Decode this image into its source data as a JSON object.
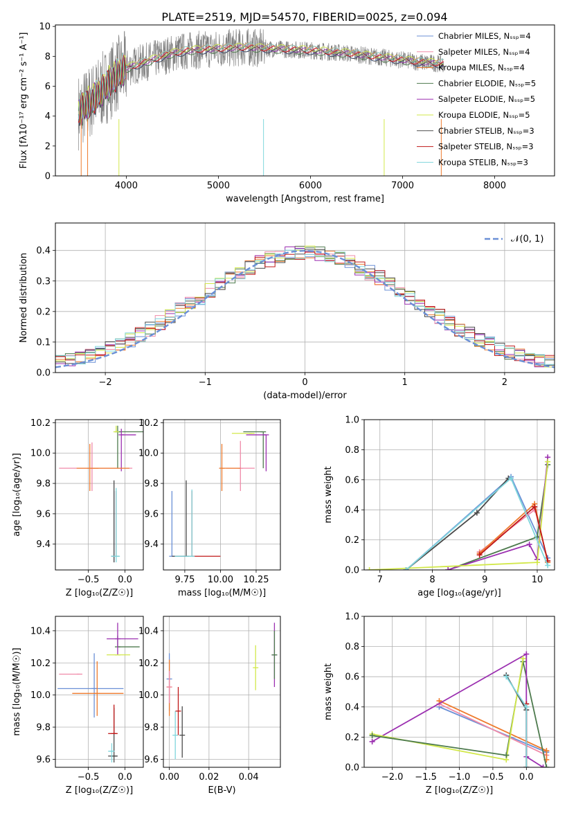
{
  "title": "PLATE=2519, MJD=54570, FIBERID=0025, z=0.094",
  "colors": {
    "chabrier_miles": "#6a8fd6",
    "salpeter_miles": "#f08aa8",
    "kroupa_miles": "#ee7a2c",
    "chabrier_elodie": "#4d7a4d",
    "salpeter_elodie": "#9b2fb0",
    "kroupa_elodie": "#d2e84a",
    "chabrier_stelib": "#4a4a4a",
    "salpeter_stelib": "#c01818",
    "kroupa_stelib": "#7fd6dc",
    "data": "#808080",
    "normal": "#6a8fd6"
  },
  "chart_data": [
    {
      "id": "spectrum",
      "type": "line",
      "xlabel": "wavelength [Angstrom, rest frame]",
      "ylabel": "Flux [fλ10⁻¹⁷ erg cm⁻² s⁻¹ A⁻¹]",
      "xlim": [
        3230,
        8650
      ],
      "ylim": [
        0,
        10.1
      ],
      "xticks": [
        "4000",
        "5000",
        "6000",
        "7000",
        "8000"
      ],
      "yticks": [
        "0",
        "2",
        "4",
        "6",
        "8",
        "10"
      ],
      "legend_position": "top-right",
      "legend": [
        "Chabrier MILES, Nₛₛₚ=4",
        "Salpeter MILES, Nₛₛₚ=4",
        "Kroupa MILES, Nₛₛₚ=4",
        "Chabrier ELODIE, Nₛₛₚ=5",
        "Salpeter ELODIE, Nₛₛₚ=5",
        "Kroupa ELODIE, Nₛₛₚ=5",
        "Chabrier STELIB, Nₛₛₚ=3",
        "Salpeter STELIB, Nₛₛₚ=3",
        "Kroupa STELIB, Nₛₛₚ=3"
      ],
      "envelope": {
        "x": [
          3480,
          3600,
          3750,
          3900,
          4000,
          4150,
          4300,
          4500,
          4700,
          5000,
          5300,
          5600,
          6000,
          6400,
          6800,
          7200,
          7450
        ],
        "y": [
          4.3,
          4.9,
          5.8,
          6.8,
          7.2,
          7.5,
          7.8,
          8.2,
          8.4,
          8.5,
          8.6,
          8.5,
          8.4,
          8.2,
          7.9,
          7.6,
          7.5
        ]
      }
    },
    {
      "id": "residuals",
      "type": "line",
      "xlabel": "(data-model)/error",
      "ylabel": "Normed distribution",
      "xlim": [
        -2.5,
        2.5
      ],
      "ylim": [
        0,
        0.49
      ],
      "xticks": [
        "−2",
        "−1",
        "0",
        "1",
        "2"
      ],
      "yticks": [
        "0.0",
        "0.1",
        "0.2",
        "0.3",
        "0.4"
      ],
      "legend": [
        "𝒩(0, 1)"
      ],
      "legend_position": "top-right",
      "grid": true,
      "bin_width": 0.1
    },
    {
      "id": "age-vs-Z",
      "type": "scatter",
      "xlabel": "Z [log₁₀(Z/Z☉)]",
      "ylabel": "age  [log₁₀(age/yr)]",
      "xlim": [
        -0.95,
        0.25
      ],
      "ylim": [
        9.23,
        10.22
      ],
      "xticks": [
        "−0.5",
        "0.0"
      ],
      "yticks": [
        "9.4",
        "9.6",
        "9.8",
        "10.0",
        "10.2"
      ],
      "grid": true,
      "points": [
        {
          "key": "chabrier_miles",
          "x": -0.15,
          "y": 9.32,
          "xerr": [
            0.02,
            0.02
          ],
          "yerr": [
            0.04,
            0.43
          ]
        },
        {
          "key": "salpeter_miles",
          "x": -0.45,
          "y": 9.9,
          "xerr": [
            0.0,
            0.0
          ],
          "yerr": [
            0.15,
            0.17
          ]
        },
        {
          "key": "kroupa_miles",
          "x": -0.48,
          "y": 9.9,
          "xerr": [
            0.0,
            0.0
          ],
          "yerr": [
            0.15,
            0.16
          ]
        },
        {
          "key": "chabrier_elodie",
          "x": -0.1,
          "y": 10.14,
          "xerr": [
            0.0,
            0.35
          ],
          "yerr": [
            0.24,
            0.04
          ]
        },
        {
          "key": "salpeter_elodie",
          "x": -0.05,
          "y": 10.12,
          "xerr": [
            0.0,
            0.2
          ],
          "yerr": [
            0.24,
            0.04
          ]
        },
        {
          "key": "kroupa_elodie",
          "x": -0.12,
          "y": 10.14,
          "xerr": [
            0.0,
            0.0
          ],
          "yerr": [
            0.0,
            0.04
          ]
        },
        {
          "key": "chabrier_stelib",
          "x": -0.15,
          "y": 9.32,
          "xerr": [
            0.0,
            0.0
          ],
          "yerr": [
            0.04,
            0.5
          ]
        },
        {
          "key": "salpeter_stelib",
          "x": -0.12,
          "y": 9.32,
          "xerr": [
            0.0,
            0.0
          ],
          "yerr": [
            0.0,
            0.43
          ]
        },
        {
          "key": "kroupa_stelib",
          "x": -0.12,
          "y": 9.32,
          "xerr": [
            0.07,
            0.05
          ],
          "yerr": [
            0.04,
            0.45
          ]
        },
        {
          "key": "salpeter_miles",
          "x": -0.4,
          "y": 9.9,
          "xerr": [
            0.5,
            0.5
          ],
          "yerr": [
            0.0,
            0.0
          ]
        },
        {
          "key": "kroupa_miles",
          "x": -0.4,
          "y": 9.9,
          "xerr": [
            0.26,
            0.46
          ],
          "yerr": [
            0.0,
            0.0
          ]
        }
      ]
    },
    {
      "id": "age-vs-mass",
      "type": "scatter",
      "xlabel": "mass [log₁₀(M/M☉)]",
      "ylabel": "",
      "xlim": [
        9.6,
        10.42
      ],
      "ylim": [
        9.23,
        10.22
      ],
      "xticks": [
        "9.75",
        "10.00",
        "10.25"
      ],
      "yticks": [
        "9.4",
        "9.6",
        "9.8",
        "10.0",
        "10.2"
      ],
      "grid": true,
      "points": [
        {
          "key": "chabrier_miles",
          "x": 9.66,
          "y": 9.32,
          "xerr": [
            0.0,
            0.1
          ],
          "yerr": [
            0.0,
            0.43
          ]
        },
        {
          "key": "salpeter_miles",
          "x": 10.14,
          "y": 9.9,
          "xerr": [
            0.1,
            0.1
          ],
          "yerr": [
            0.15,
            0.18
          ]
        },
        {
          "key": "kroupa_miles",
          "x": 10.01,
          "y": 9.9,
          "xerr": [
            0.0,
            0.13
          ],
          "yerr": [
            0.15,
            0.16
          ]
        },
        {
          "key": "chabrier_elodie",
          "x": 10.3,
          "y": 10.14,
          "xerr": [
            0.14,
            0.0
          ],
          "yerr": [
            0.24,
            0.0
          ]
        },
        {
          "key": "salpeter_elodie",
          "x": 10.32,
          "y": 10.12,
          "xerr": [
            0.14,
            0.0
          ],
          "yerr": [
            0.24,
            0.0
          ]
        },
        {
          "key": "kroupa_elodie",
          "x": 10.22,
          "y": 10.13,
          "xerr": [
            0.14,
            0.0
          ],
          "yerr": [
            0.0,
            0.0
          ]
        },
        {
          "key": "chabrier_stelib",
          "x": 9.76,
          "y": 9.32,
          "xerr": [
            0.1,
            0.0
          ],
          "yerr": [
            0.0,
            0.5
          ]
        },
        {
          "key": "salpeter_stelib",
          "x": 9.8,
          "y": 9.32,
          "xerr": [
            0.0,
            0.2
          ],
          "yerr": [
            0.0,
            0.43
          ]
        },
        {
          "key": "kroupa_stelib",
          "x": 9.8,
          "y": 9.32,
          "xerr": [
            0.12,
            0.0
          ],
          "yerr": [
            0.0,
            0.44
          ]
        }
      ]
    },
    {
      "id": "weight-vs-age",
      "type": "line",
      "xlabel": "age  [log₁₀(age/yr)]",
      "ylabel": "mass weight",
      "xlim": [
        6.7,
        10.33
      ],
      "ylim": [
        0,
        1.0
      ],
      "xticks": [
        "7",
        "8",
        "9",
        "10"
      ],
      "yticks": [
        "0.0",
        "0.2",
        "0.4",
        "0.6",
        "0.8",
        "1.0"
      ],
      "grid": true,
      "series": [
        {
          "key": "chabrier_miles",
          "x": [
            7.5,
            9.5,
            10.2
          ],
          "y": [
            0.0,
            0.62,
            0.08
          ]
        },
        {
          "key": "salpeter_miles",
          "x": [
            8.9,
            9.95
          ],
          "y": [
            0.12,
            0.4
          ]
        },
        {
          "key": "kroupa_miles",
          "x": [
            8.9,
            9.95,
            10.2
          ],
          "y": [
            0.11,
            0.44,
            0.05
          ]
        },
        {
          "key": "chabrier_elodie",
          "x": [
            8.3,
            10.0,
            10.2
          ],
          "y": [
            0.0,
            0.22,
            0.7
          ]
        },
        {
          "key": "salpeter_elodie",
          "x": [
            8.3,
            9.85,
            10.0,
            10.2
          ],
          "y": [
            0.0,
            0.17,
            0.07,
            0.75
          ]
        },
        {
          "key": "kroupa_elodie",
          "x": [
            6.8,
            10.0,
            10.2
          ],
          "y": [
            0.0,
            0.05,
            0.72
          ]
        },
        {
          "key": "chabrier_stelib",
          "x": [
            7.5,
            8.85,
            9.45
          ],
          "y": [
            0.0,
            0.38,
            0.61
          ]
        },
        {
          "key": "salpeter_stelib",
          "x": [
            8.9,
            9.95,
            10.2
          ],
          "y": [
            0.1,
            0.42,
            0.06
          ]
        },
        {
          "key": "kroupa_stelib",
          "x": [
            7.5,
            9.5,
            10.2
          ],
          "y": [
            0.0,
            0.61,
            0.03
          ]
        }
      ]
    },
    {
      "id": "mass-vs-Z",
      "type": "scatter",
      "xlabel": "Z [log₁₀(Z/Z☉)]",
      "ylabel": "mass [log₁₀(M/M☉)]",
      "xlim": [
        -0.95,
        0.25
      ],
      "ylim": [
        9.55,
        10.49
      ],
      "xticks": [
        "−0.5",
        "0.0"
      ],
      "yticks": [
        "9.6",
        "9.8",
        "10.0",
        "10.2",
        "10.4"
      ],
      "grid": true,
      "points": [
        {
          "key": "chabrier_miles",
          "x": -0.42,
          "y": 10.04,
          "xerr": [
            0.5,
            0.4
          ],
          "yerr": [
            0.18,
            0.22
          ]
        },
        {
          "key": "salpeter_miles",
          "x": -0.62,
          "y": 10.13,
          "xerr": [
            0.28,
            0.0
          ],
          "yerr": [
            0.0,
            0.0
          ]
        },
        {
          "key": "kroupa_miles",
          "x": -0.38,
          "y": 10.01,
          "xerr": [
            0.34,
            0.36
          ],
          "yerr": [
            0.14,
            0.2
          ]
        },
        {
          "key": "chabrier_elodie",
          "x": -0.1,
          "y": 10.3,
          "xerr": [
            0.0,
            0.3
          ],
          "yerr": [
            0.0,
            0.07
          ]
        },
        {
          "key": "salpeter_elodie",
          "x": -0.1,
          "y": 10.35,
          "xerr": [
            0.15,
            0.28
          ],
          "yerr": [
            0.1,
            0.1
          ]
        },
        {
          "key": "kroupa_elodie",
          "x": -0.1,
          "y": 10.25,
          "xerr": [
            0.15,
            0.17
          ],
          "yerr": [
            0.0,
            0.0
          ]
        },
        {
          "key": "chabrier_stelib",
          "x": -0.15,
          "y": 9.62,
          "xerr": [
            0.08,
            0.05
          ],
          "yerr": [
            0.04,
            0.3
          ]
        },
        {
          "key": "salpeter_stelib",
          "x": -0.15,
          "y": 9.76,
          "xerr": [
            0.08,
            0.05
          ],
          "yerr": [
            0.0,
            0.18
          ]
        },
        {
          "key": "kroupa_stelib",
          "x": -0.18,
          "y": 9.65,
          "xerr": [
            0.05,
            0.03
          ],
          "yerr": [
            0.07,
            0.05
          ]
        }
      ]
    },
    {
      "id": "mass-vs-EBV",
      "type": "scatter",
      "xlabel": "E(B-V)",
      "ylabel": "",
      "xlim": [
        -0.003,
        0.056
      ],
      "ylim": [
        9.55,
        10.49
      ],
      "xticks": [
        "0.00",
        "0.02",
        "0.04"
      ],
      "yticks": [
        "9.6",
        "9.8",
        "10.0",
        "10.2",
        "10.4"
      ],
      "grid": true,
      "points": [
        {
          "key": "chabrier_miles",
          "x": 0.0,
          "y": 10.1,
          "xerr": [
            0.0,
            0.0
          ],
          "yerr": [
            0.2,
            0.16
          ]
        },
        {
          "key": "kroupa_miles",
          "x": 0.0,
          "y": 10.05,
          "xerr": [
            0.0,
            0.0
          ],
          "yerr": [
            0.18,
            0.17
          ]
        },
        {
          "key": "salpeter_miles",
          "x": 0.0,
          "y": 10.05,
          "xerr": [
            0.0,
            0.0
          ],
          "yerr": [
            0.1,
            0.1
          ]
        },
        {
          "key": "kroupa_stelib",
          "x": 0.003,
          "y": 9.75,
          "xerr": [
            0.0,
            0.0
          ],
          "yerr": [
            0.15,
            0.15
          ]
        },
        {
          "key": "salpeter_stelib",
          "x": 0.0045,
          "y": 9.9,
          "xerr": [
            0.0,
            0.0
          ],
          "yerr": [
            0.15,
            0.15
          ]
        },
        {
          "key": "chabrier_stelib",
          "x": 0.0065,
          "y": 9.75,
          "xerr": [
            0.0,
            0.0
          ],
          "yerr": [
            0.14,
            0.18
          ]
        },
        {
          "key": "kroupa_elodie",
          "x": 0.0435,
          "y": 10.17,
          "xerr": [
            0.0,
            0.0
          ],
          "yerr": [
            0.14,
            0.14
          ]
        },
        {
          "key": "salpeter_elodie",
          "x": 0.053,
          "y": 10.25,
          "xerr": [
            0.0,
            0.0
          ],
          "yerr": [
            0.2,
            0.2
          ]
        },
        {
          "key": "chabrier_elodie",
          "x": 0.053,
          "y": 10.25,
          "xerr": [
            0.0,
            0.0
          ],
          "yerr": [
            0.15,
            0.15
          ]
        }
      ]
    },
    {
      "id": "weight-vs-Z",
      "type": "line",
      "xlabel": "Z [log₁₀(Z/Z☉)]",
      "ylabel": "mass weight",
      "xlim": [
        -2.42,
        0.42
      ],
      "ylim": [
        0,
        1.0
      ],
      "xticks": [
        "−2.0",
        "−1.5",
        "−1.0",
        "−0.5",
        "0.0"
      ],
      "yticks": [
        "0.0",
        "0.2",
        "0.4",
        "0.6",
        "0.8",
        "1.0"
      ],
      "grid": true,
      "series": [
        {
          "key": "chabrier_miles",
          "x": [
            -1.3,
            0.3
          ],
          "y": [
            0.4,
            0.1
          ]
        },
        {
          "key": "salpeter_miles",
          "x": [
            -1.3,
            0.3
          ],
          "y": [
            0.42,
            0.08
          ]
        },
        {
          "key": "kroupa_miles",
          "x": [
            -1.3,
            0.3,
            0.3
          ],
          "y": [
            0.44,
            0.11,
            0.05
          ]
        },
        {
          "key": "chabrier_elodie",
          "x": [
            -0.3,
            -0.05,
            0.3
          ],
          "y": [
            0.08,
            0.7,
            0.0
          ]
        },
        {
          "key": "salpeter_elodie",
          "x": [
            -2.3,
            0.0,
            0.0,
            0.25
          ],
          "y": [
            0.17,
            0.75,
            0.07,
            0.0
          ]
        },
        {
          "key": "kroupa_elodie",
          "x": [
            -2.3,
            -0.3,
            -0.05
          ],
          "y": [
            0.22,
            0.05,
            0.72
          ]
        },
        {
          "key": "chabrier_stelib",
          "x": [
            -0.3,
            0.0,
            0.0
          ],
          "y": [
            0.61,
            0.38,
            0.0
          ]
        },
        {
          "key": "salpeter_stelib",
          "x": [
            0.0,
            0.0
          ],
          "y": [
            0.42,
            0.0
          ]
        },
        {
          "key": "kroupa_stelib",
          "x": [
            -0.3,
            0.0,
            0.0
          ],
          "y": [
            0.6,
            0.4,
            0.0
          ]
        },
        {
          "key": "chabrier_elodie",
          "x": [
            -2.3,
            -0.3
          ],
          "y": [
            0.21,
            0.08
          ]
        }
      ]
    }
  ]
}
